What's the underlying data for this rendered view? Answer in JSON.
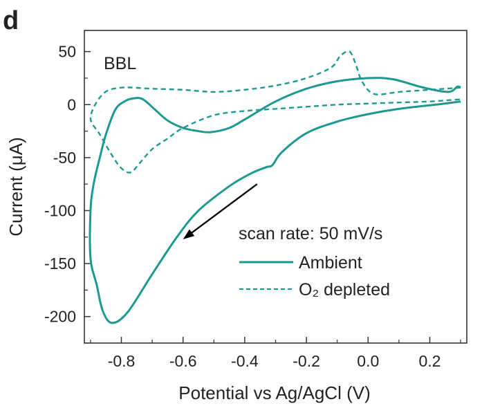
{
  "panel_label": "d",
  "chart_data": {
    "type": "line",
    "title": "",
    "sample_label": "BBL",
    "xlabel": "Potential vs Ag/AgCl (V)",
    "ylabel": "Current (μA)",
    "xlim": [
      -0.92,
      0.32
    ],
    "ylim": [
      -225,
      70
    ],
    "xticks": [
      -0.8,
      -0.6,
      -0.4,
      -0.2,
      0.0,
      0.2
    ],
    "xtick_labels": [
      "-0.8",
      "-0.6",
      "-0.4",
      "-0.2",
      "0.0",
      "0.2"
    ],
    "yticks": [
      50,
      0,
      -50,
      -100,
      -150,
      -200
    ],
    "ytick_labels": [
      "50",
      "0",
      "-50",
      "-100",
      "-150",
      "-200"
    ],
    "grid": false,
    "legend_title": "scan rate: 50 mV/s",
    "legend_placement": "bottom-right",
    "series": [
      {
        "name": "Ambient",
        "style": "solid",
        "color": "#1a9990",
        "x": [
          0.3,
          0.22,
          0.1,
          0.0,
          -0.1,
          -0.2,
          -0.28,
          -0.31,
          -0.33,
          -0.38,
          -0.45,
          -0.55,
          -0.62,
          -0.7,
          -0.78,
          -0.83,
          -0.86,
          -0.88,
          -0.9,
          -0.9,
          -0.89,
          -0.87,
          -0.85,
          -0.82,
          -0.79,
          -0.76,
          -0.73,
          -0.69,
          -0.65,
          -0.6,
          -0.55,
          -0.51,
          -0.45,
          -0.4,
          -0.3,
          -0.2,
          -0.1,
          0.0,
          0.08,
          0.18,
          0.26,
          0.29,
          0.3
        ],
        "y": [
          3,
          0,
          -4,
          -9,
          -16,
          -27,
          -45,
          -57,
          -59,
          -65,
          -77,
          -100,
          -125,
          -160,
          -196,
          -206,
          -195,
          -170,
          -145,
          -100,
          -75,
          -50,
          -28,
          -5,
          3,
          6,
          5,
          -5,
          -15,
          -22,
          -25,
          -26,
          -22,
          -14,
          3,
          15,
          22,
          25,
          24,
          16,
          12,
          17,
          16
        ]
      },
      {
        "name": "O2 depleted",
        "legend_display": "O₂ depleted",
        "style": "dashed",
        "color": "#1a9990",
        "x": [
          0.3,
          0.2,
          0.1,
          0.02,
          -0.02,
          -0.04,
          -0.06,
          -0.09,
          -0.12,
          -0.2,
          -0.3,
          -0.4,
          -0.5,
          -0.6,
          -0.7,
          -0.8,
          -0.86,
          -0.9,
          -0.87,
          -0.83,
          -0.8,
          -0.77,
          -0.74,
          -0.7,
          -0.65,
          -0.6,
          -0.5,
          -0.4,
          -0.3,
          -0.2,
          -0.1,
          0.0,
          0.1,
          0.2,
          0.3
        ],
        "y": [
          16,
          14,
          12,
          10,
          22,
          38,
          50,
          46,
          35,
          25,
          18,
          14,
          12,
          14,
          15,
          16,
          10,
          -12,
          -28,
          -48,
          -60,
          -64,
          -55,
          -42,
          -32,
          -22,
          -10,
          -6,
          -4,
          -2,
          0,
          1,
          2,
          3,
          5
        ]
      }
    ],
    "annotations": [
      {
        "type": "arrow",
        "from": [
          -0.36,
          -75
        ],
        "to": [
          -0.6,
          -127
        ],
        "color": "#000000"
      }
    ]
  }
}
